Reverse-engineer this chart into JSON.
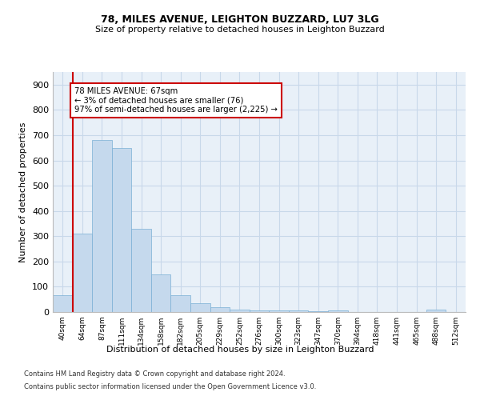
{
  "title1": "78, MILES AVENUE, LEIGHTON BUZZARD, LU7 3LG",
  "title2": "Size of property relative to detached houses in Leighton Buzzard",
  "xlabel": "Distribution of detached houses by size in Leighton Buzzard",
  "ylabel": "Number of detached properties",
  "footnote1": "Contains HM Land Registry data © Crown copyright and database right 2024.",
  "footnote2": "Contains public sector information licensed under the Open Government Licence v3.0.",
  "annotation_line1": "78 MILES AVENUE: 67sqm",
  "annotation_line2": "← 3% of detached houses are smaller (76)",
  "annotation_line3": "97% of semi-detached houses are larger (2,225) →",
  "bar_color": "#c5d9ed",
  "bar_edge_color": "#7aafd4",
  "grid_color": "#c8d8ea",
  "highlight_line_color": "#cc0000",
  "annotation_box_color": "#ffffff",
  "annotation_box_edge": "#cc0000",
  "categories": [
    "40sqm",
    "64sqm",
    "87sqm",
    "111sqm",
    "134sqm",
    "158sqm",
    "182sqm",
    "205sqm",
    "229sqm",
    "252sqm",
    "276sqm",
    "300sqm",
    "323sqm",
    "347sqm",
    "370sqm",
    "394sqm",
    "418sqm",
    "441sqm",
    "465sqm",
    "488sqm",
    "512sqm"
  ],
  "values": [
    65,
    310,
    680,
    650,
    330,
    150,
    65,
    35,
    20,
    10,
    5,
    5,
    5,
    2,
    5,
    1,
    1,
    1,
    1,
    8,
    1
  ],
  "ylim": [
    0,
    950
  ],
  "yticks": [
    0,
    100,
    200,
    300,
    400,
    500,
    600,
    700,
    800,
    900
  ],
  "background_color": "#e8f0f8"
}
